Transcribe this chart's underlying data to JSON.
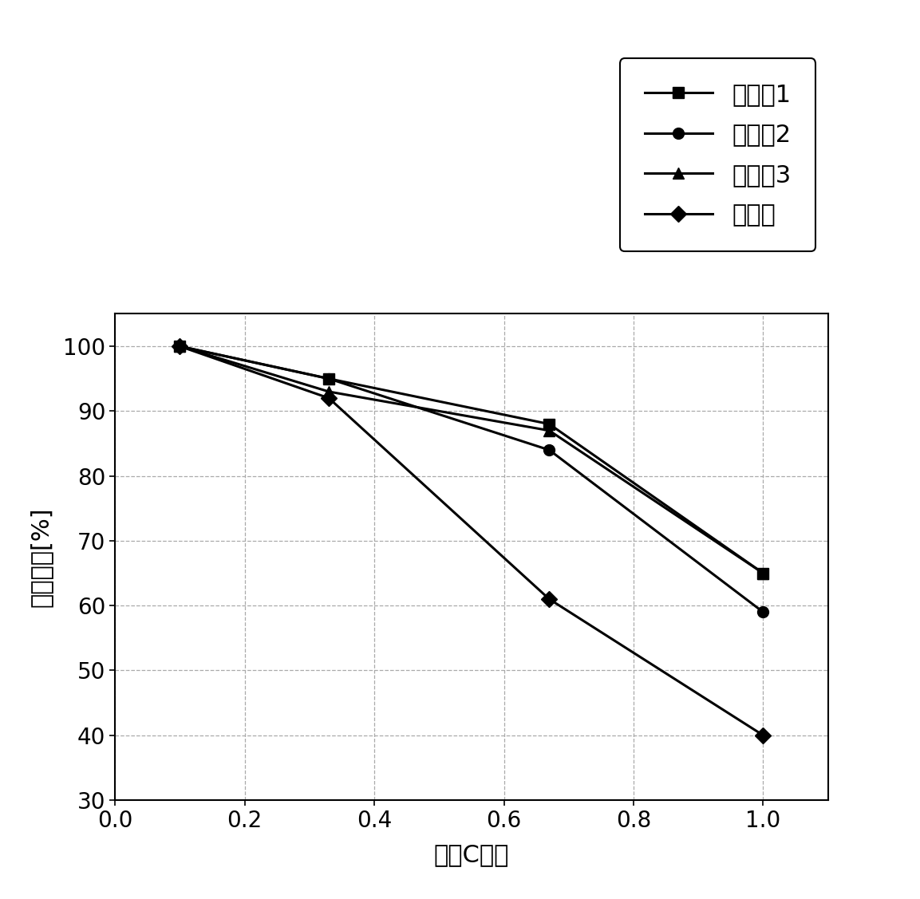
{
  "series": [
    {
      "label": "实施例1",
      "x": [
        0.1,
        0.33,
        0.67,
        1.0
      ],
      "y": [
        100,
        95,
        88,
        65
      ],
      "marker": "s",
      "color": "#000000",
      "linewidth": 2.2,
      "markersize": 10
    },
    {
      "label": "实施例2",
      "x": [
        0.1,
        0.33,
        0.67,
        1.0
      ],
      "y": [
        100,
        95,
        84,
        59
      ],
      "marker": "o",
      "color": "#000000",
      "linewidth": 2.2,
      "markersize": 10
    },
    {
      "label": "实施例3",
      "x": [
        0.1,
        0.33,
        0.67,
        1.0
      ],
      "y": [
        100,
        93,
        87,
        65
      ],
      "marker": "^",
      "color": "#000000",
      "linewidth": 2.2,
      "markersize": 10
    },
    {
      "label": "比较例",
      "x": [
        0.1,
        0.33,
        0.67,
        1.0
      ],
      "y": [
        100,
        92,
        61,
        40
      ],
      "marker": "D",
      "color": "#000000",
      "linewidth": 2.2,
      "markersize": 10
    }
  ],
  "xlabel": "放电C倍率",
  "ylabel": "放电容量[%]",
  "xlim": [
    0.0,
    1.1
  ],
  "ylim": [
    30,
    105
  ],
  "xticks": [
    0.0,
    0.2,
    0.4,
    0.6,
    0.8,
    1.0
  ],
  "yticks": [
    30,
    40,
    50,
    60,
    70,
    80,
    90,
    100
  ],
  "grid_color": "#aaaaaa",
  "background_color": "#ffffff",
  "legend_fontsize": 22,
  "axis_label_fontsize": 22,
  "tick_fontsize": 20
}
